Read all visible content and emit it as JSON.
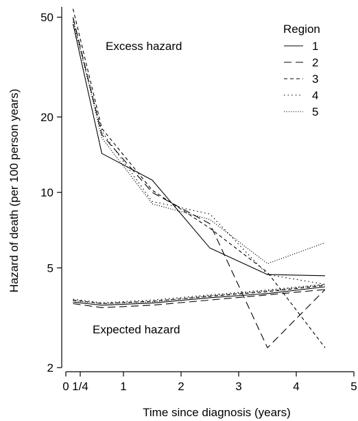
{
  "chart_data": {
    "type": "line",
    "xlabel": "Time since diagnosis (years)",
    "ylabel": "Hazard of death (per 100 person years)",
    "xlim": [
      0,
      5
    ],
    "ylim": [
      2,
      55
    ],
    "yscale": "log",
    "x_ticks": [
      {
        "value": 0,
        "label": "0"
      },
      {
        "value": 0.25,
        "label": "1/4"
      },
      {
        "value": 1,
        "label": "1"
      },
      {
        "value": 2,
        "label": "2"
      },
      {
        "value": 3,
        "label": "3"
      },
      {
        "value": 4,
        "label": "4"
      },
      {
        "value": 5,
        "label": "5"
      }
    ],
    "y_ticks": [
      {
        "value": 2,
        "label": "2"
      },
      {
        "value": 5,
        "label": "5"
      },
      {
        "value": 10,
        "label": "10"
      },
      {
        "value": 20,
        "label": "20"
      },
      {
        "value": 50,
        "label": "50"
      }
    ],
    "grid": false,
    "legend_title": "Region",
    "legend_position": "top-right",
    "annotations": [
      {
        "text": "Excess hazard"
      },
      {
        "text": "Expected hazard"
      }
    ],
    "excess_series": [
      {
        "name": "1",
        "style": "solid",
        "x": [
          0.125,
          0.625,
          1.5,
          2.5,
          3.5,
          4.5
        ],
        "y": [
          47,
          14.3,
          11.2,
          6,
          4.7,
          4.65
        ]
      },
      {
        "name": "2",
        "style": "longdash",
        "x": [
          0.125,
          0.625,
          1.5,
          2.5,
          3.5,
          4.5
        ],
        "y": [
          50,
          17,
          10,
          7.5,
          2.4,
          4.1
        ]
      },
      {
        "name": "3",
        "style": "dashed",
        "x": [
          0.125,
          0.625,
          1.5,
          2.5,
          3.5,
          4.5
        ],
        "y": [
          54,
          18,
          10.2,
          7.2,
          4.8,
          2.4
        ]
      },
      {
        "name": "4",
        "style": "dotted",
        "x": [
          0.125,
          0.625,
          1.5,
          2.5,
          3.5,
          4.5
        ],
        "y": [
          48,
          17.5,
          9.2,
          8.2,
          4.7,
          4.3
        ]
      },
      {
        "name": "5",
        "style": "finedotted",
        "x": [
          0.125,
          0.625,
          1.5,
          2.5,
          3.5,
          4.5
        ],
        "y": [
          49,
          16.5,
          9,
          7.8,
          5.2,
          6.3
        ]
      }
    ],
    "expected_series": [
      {
        "name": "1",
        "style": "solid",
        "x": [
          0.125,
          0.625,
          1.5,
          2.5,
          3.5,
          4.5
        ],
        "y": [
          3.65,
          3.55,
          3.62,
          3.8,
          3.95,
          4.2
        ]
      },
      {
        "name": "2",
        "style": "longdash",
        "x": [
          0.125,
          0.625,
          1.5,
          2.5,
          3.5,
          4.5
        ],
        "y": [
          3.6,
          3.47,
          3.55,
          3.72,
          3.9,
          4.1
        ]
      },
      {
        "name": "3",
        "style": "dashed",
        "x": [
          0.125,
          0.625,
          1.5,
          2.5,
          3.5,
          4.5
        ],
        "y": [
          3.72,
          3.6,
          3.68,
          3.85,
          4.02,
          4.25
        ]
      },
      {
        "name": "4",
        "style": "dotted",
        "x": [
          0.125,
          0.625,
          1.5,
          2.5,
          3.5,
          4.5
        ],
        "y": [
          3.75,
          3.63,
          3.72,
          3.9,
          4.08,
          4.3
        ]
      },
      {
        "name": "5",
        "style": "finedotted",
        "x": [
          0.125,
          0.625,
          1.5,
          2.5,
          3.5,
          4.5
        ],
        "y": [
          3.7,
          3.6,
          3.66,
          3.87,
          4.05,
          4.28
        ]
      }
    ],
    "line_color": "#000000"
  }
}
